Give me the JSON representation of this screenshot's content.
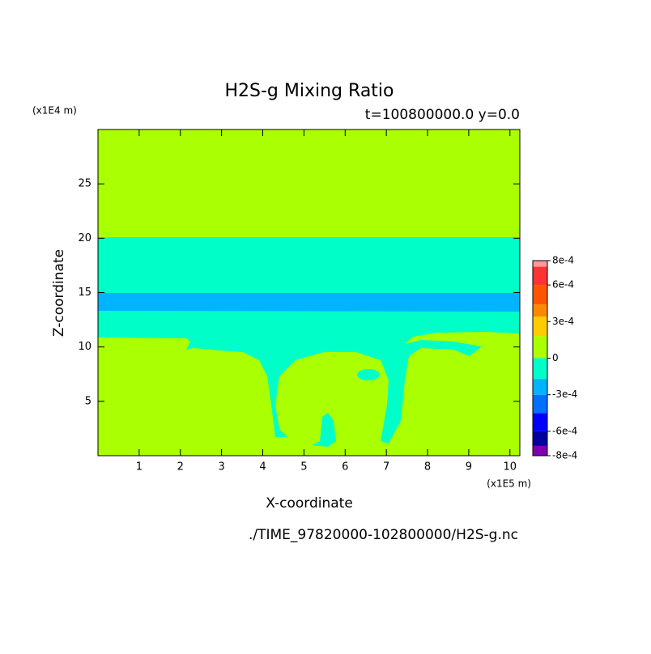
{
  "chart_data": {
    "type": "contour",
    "title": "H2S-g Mixing Ratio",
    "subtitle": "t=100800000.0 y=0.0",
    "x_label": "X-coordinate",
    "y_label": "Z-coordinate",
    "x_unit": "(x1E5 m)",
    "y_unit": "(x1E4 m)",
    "footer": "./TIME_97820000-102800000/H2S-g.nc",
    "xlim": [
      0,
      10.24
    ],
    "xticks": [
      1,
      2,
      3,
      4,
      5,
      6,
      7,
      8,
      9,
      10
    ],
    "ylim": [
      0,
      30
    ],
    "yticks": [
      5,
      10,
      15,
      20,
      25
    ],
    "colorbar": {
      "levels": [
        -0.0008,
        -0.00072,
        -0.0006,
        -0.00045,
        -0.0003,
        -0.00017,
        0,
        0.00018,
        0.00034,
        0.00044,
        0.0006,
        0.00075,
        0.0008
      ],
      "colors": [
        "#8000b0",
        "#0000a0",
        "#0000ff",
        "#0070ff",
        "#00b4ff",
        "#00ffc8",
        "#aaff00",
        "#ffcc00",
        "#ff8800",
        "#ff5500",
        "#ff3333",
        "#ff9999"
      ],
      "ticks": [
        {
          "value": 0.0008,
          "label": "8e-4"
        },
        {
          "value": 0.0006,
          "label": "6e-4"
        },
        {
          "value": 0.0003,
          "label": "3e-4"
        },
        0,
        {
          "value": -0.0003,
          "label": "-3e-4"
        },
        {
          "value": -0.0006,
          "label": "-6e-4"
        },
        {
          "value": -0.0008,
          "label": "-8e-4"
        }
      ]
    }
  }
}
